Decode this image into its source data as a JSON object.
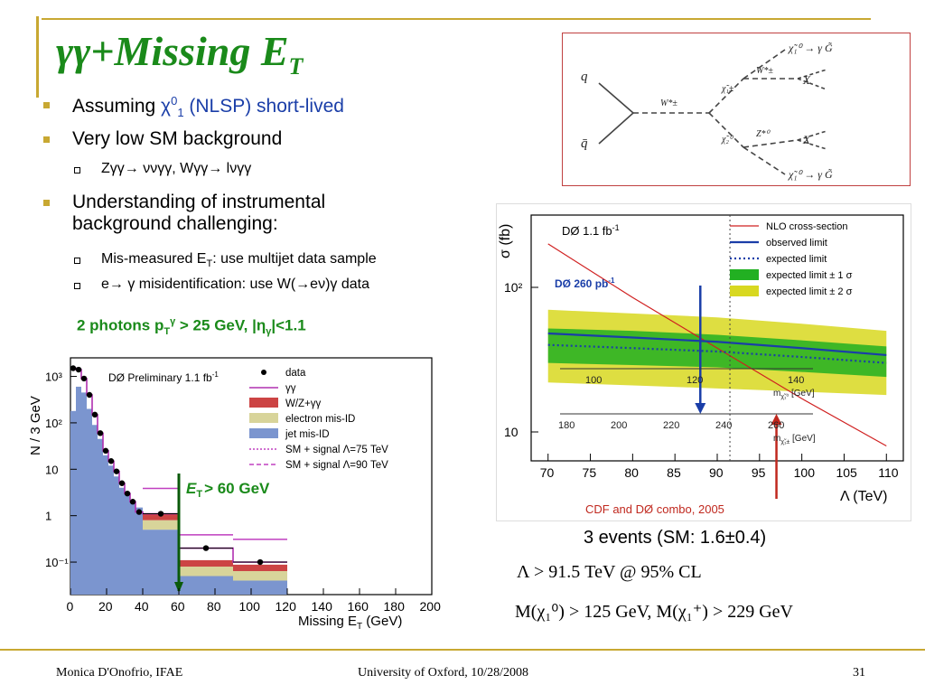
{
  "slide": {
    "title_main": "γγ+Missing E",
    "title_sub": "T",
    "bullets": [
      {
        "pre": "Assuming ",
        "chi": "χ",
        "sup": "0",
        "sub": "1",
        "post": " (NLSP) short-lived"
      },
      {
        "text": "Very low SM background"
      },
      {
        "sub_item": "Zγγ→ ννγγ, Wγγ→ lνγγ"
      },
      {
        "line1": "Understanding of instrumental",
        "line2": "background challenging:"
      },
      {
        "sub_pre": "Mis-measured E",
        "sub_sub": "T",
        "sub_post": ": use multijet data sample"
      },
      {
        "sub_item": "e→ γ misidentification: use W(→eν)γ data"
      }
    ],
    "condition": {
      "pre": "2 photons p",
      "sub": "T",
      "sup": "γ",
      "mid": " > 25 GeV,  |η",
      "sub2": "γ",
      "post": "|<1.1"
    },
    "results": {
      "events": "3 events (SM: 1.6±0.4)",
      "lambda": "Λ > 91.5 TeV @ 95% CL",
      "mass": "M(χ₁⁰) > 125 GeV, M(χ₁⁺) > 229 GeV"
    },
    "footer": {
      "left": "Monica D'Onofrio, IFAE",
      "center": "University of Oxford, 10/28/2008",
      "right": "31"
    }
  },
  "feynman": {
    "labels": [
      "q",
      "q̄",
      "W*±",
      "χ̃₁±",
      "χ̃₂⁰",
      "W*±",
      "Z*⁰",
      "X",
      "X",
      "χ̃₁⁰ → γ G̃",
      "χ̃₁⁰ → γ G̃"
    ]
  },
  "chart_data": [
    {
      "type": "line",
      "title": "",
      "experiment": "DØ 1.1 fb",
      "experiment_sup": "-1",
      "ylabel": "σ (fb)",
      "xlabel": "Λ (TeV)",
      "x_ticks": [
        "70",
        "75",
        "80",
        "85",
        "90",
        "95",
        "100",
        "105",
        "110"
      ],
      "y_ticks": [
        "10",
        "10²"
      ],
      "xlim": [
        68,
        112
      ],
      "ylim_log10": [
        0.8,
        2.5
      ],
      "mass_axes": [
        {
          "label": "m",
          "sub": "χ̃₁⁰",
          "unit": " [GeV]",
          "ticks": [
            "100",
            "120",
            "140"
          ]
        },
        {
          "label": "m",
          "sub": "χ̃₁±",
          "unit": " [GeV]",
          "ticks": [
            "180",
            "200",
            "220",
            "240",
            "260"
          ]
        }
      ],
      "annotations": [
        {
          "text": "DØ 260 pb",
          "sup": "-1",
          "color": "#1a3ea8"
        },
        {
          "text": "CDF and DØ combo, 2005",
          "color": "#c0281e"
        }
      ],
      "legend_position": "top-right",
      "series": [
        {
          "name": "NLO cross-section",
          "color": "#d02020",
          "x": [
            70,
            80,
            90,
            100,
            110
          ],
          "y": [
            200,
            85,
            38,
            17,
            8
          ]
        },
        {
          "name": "observed limit",
          "color": "#1a3ea8",
          "x": [
            70,
            80,
            90,
            100,
            110
          ],
          "y": [
            48,
            45,
            42,
            38,
            34
          ]
        },
        {
          "name": "expected limit",
          "color": "#1a3ea8",
          "x": [
            70,
            80,
            90,
            100,
            110
          ],
          "y": [
            40,
            38,
            36,
            33,
            30
          ]
        },
        {
          "name": "expected limit ± 1 σ",
          "color": "#22b022",
          "y_lo": [
            30,
            29,
            28,
            26,
            24
          ],
          "y_hi": [
            52,
            50,
            47,
            43,
            39
          ],
          "x": [
            70,
            80,
            90,
            100,
            110
          ]
        },
        {
          "name": "expected limit ± 2 σ",
          "color": "#d8d820",
          "y_lo": [
            22,
            21,
            20,
            19,
            18
          ],
          "y_hi": [
            70,
            66,
            62,
            56,
            50
          ],
          "x": [
            70,
            80,
            90,
            100,
            110
          ]
        }
      ],
      "arrows": [
        {
          "x": 88
        },
        {
          "x": 97
        }
      ],
      "vline_x": 91.5
    },
    {
      "type": "bar",
      "title": "DØ Preliminary 1.1 fb",
      "title_sup": "-1",
      "ylabel": "N / 3 GeV",
      "xlabel": "Missing E",
      "xlabel_sub": "T",
      "xlabel_unit": " (GeV)",
      "x_ticks": [
        "0",
        "20",
        "40",
        "60",
        "80",
        "100",
        "120",
        "140",
        "160",
        "180",
        "200"
      ],
      "y_ticks": [
        "10⁻¹",
        "1",
        "10",
        "10²",
        "10³"
      ],
      "xlim": [
        0,
        200
      ],
      "ylim_log10": [
        -1.7,
        3.4
      ],
      "cut_label": "E",
      "cut_sub": "T",
      "cut_text": "> 60 GeV",
      "cut_x": 60,
      "legend_position": "top-right",
      "legend": [
        {
          "name": "data",
          "style": "dot"
        },
        {
          "name": "γγ",
          "style": "line",
          "color": "#b030b0"
        },
        {
          "name": "W/Z+γγ",
          "style": "box",
          "color": "#cc4444"
        },
        {
          "name": "electron mis-ID",
          "style": "box",
          "color": "#d8d49a"
        },
        {
          "name": "jet mis-ID",
          "style": "box",
          "color": "#7b95cf"
        },
        {
          "name": "SM + signal Λ=75 TeV",
          "style": "dotted",
          "color": "#c040c0"
        },
        {
          "name": "SM + signal Λ=90 TeV",
          "style": "dashed",
          "color": "#c040c0"
        }
      ],
      "bins": [
        {
          "x0": 0,
          "x1": 3,
          "jet": 180,
          "data": 1500
        },
        {
          "x0": 3,
          "x1": 6,
          "jet": 600,
          "data": 1400
        },
        {
          "x0": 6,
          "x1": 9,
          "jet": 450,
          "data": 900
        },
        {
          "x0": 9,
          "x1": 12,
          "jet": 200,
          "data": 400
        },
        {
          "x0": 12,
          "x1": 15,
          "jet": 90,
          "data": 150
        },
        {
          "x0": 15,
          "x1": 18,
          "jet": 45,
          "data": 60
        },
        {
          "x0": 18,
          "x1": 21,
          "jet": 20,
          "data": 25
        },
        {
          "x0": 21,
          "x1": 24,
          "jet": 12,
          "data": 15
        },
        {
          "x0": 24,
          "x1": 27,
          "jet": 7,
          "data": 9
        },
        {
          "x0": 27,
          "x1": 30,
          "jet": 4,
          "data": 5
        },
        {
          "x0": 30,
          "x1": 33,
          "jet": 3,
          "data": 3
        },
        {
          "x0": 33,
          "x1": 36,
          "jet": 2,
          "data": 2
        },
        {
          "x0": 36,
          "x1": 40,
          "jet": 1.5,
          "data": 1.2
        },
        {
          "x0": 40,
          "x1": 60,
          "jet": 0.5,
          "data": 1.1
        },
        {
          "x0": 60,
          "x1": 90,
          "jet": 0.05,
          "data": 0.2
        },
        {
          "x0": 90,
          "x1": 120,
          "jet": 0.04,
          "data": 0.1
        }
      ]
    }
  ]
}
